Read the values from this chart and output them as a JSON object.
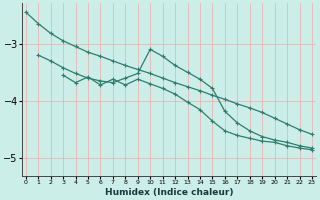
{
  "xlabel": "Humidex (Indice chaleur)",
  "background_color": "#cceee8",
  "grid_color": "#f0aaaa",
  "line_color": "#2e7d6e",
  "x_ticks": [
    0,
    1,
    2,
    3,
    4,
    5,
    6,
    7,
    8,
    9,
    10,
    11,
    12,
    13,
    14,
    15,
    16,
    17,
    18,
    19,
    20,
    21,
    22,
    23
  ],
  "y_ticks": [
    -3,
    -4,
    -5
  ],
  "ylim": [
    -5.3,
    -2.3
  ],
  "xlim": [
    -0.3,
    23.3
  ],
  "series1": {
    "x": [
      0,
      1,
      2,
      3,
      4,
      5,
      6,
      7,
      8,
      9,
      10,
      11,
      12,
      13,
      14,
      15,
      16,
      17,
      18,
      19,
      20,
      21,
      22,
      23
    ],
    "y": [
      -2.45,
      -2.65,
      -2.82,
      -2.95,
      -3.05,
      -3.15,
      -3.22,
      -3.3,
      -3.38,
      -3.45,
      -3.52,
      -3.6,
      -3.68,
      -3.75,
      -3.82,
      -3.9,
      -3.97,
      -4.05,
      -4.12,
      -4.2,
      -4.3,
      -4.4,
      -4.5,
      -4.58
    ]
  },
  "series2": {
    "x": [
      1,
      2,
      3,
      4,
      5,
      6,
      7,
      8,
      9,
      10,
      11,
      12,
      13,
      14,
      15,
      16,
      17,
      18,
      19,
      20,
      21,
      22,
      23
    ],
    "y": [
      -3.2,
      -3.3,
      -3.42,
      -3.52,
      -3.6,
      -3.65,
      -3.68,
      -3.6,
      -3.52,
      -3.1,
      -3.22,
      -3.38,
      -3.5,
      -3.62,
      -3.78,
      -4.18,
      -4.38,
      -4.52,
      -4.62,
      -4.68,
      -4.72,
      -4.78,
      -4.82
    ]
  },
  "series3": {
    "x": [
      3,
      4,
      5,
      6,
      7,
      8,
      9,
      10,
      11,
      12,
      13,
      14,
      15,
      16,
      17,
      18,
      19,
      20,
      21,
      22,
      23
    ],
    "y": [
      -3.55,
      -3.68,
      -3.58,
      -3.72,
      -3.62,
      -3.72,
      -3.62,
      -3.7,
      -3.78,
      -3.88,
      -4.02,
      -4.15,
      -4.35,
      -4.52,
      -4.6,
      -4.65,
      -4.7,
      -4.72,
      -4.78,
      -4.82,
      -4.85
    ]
  }
}
